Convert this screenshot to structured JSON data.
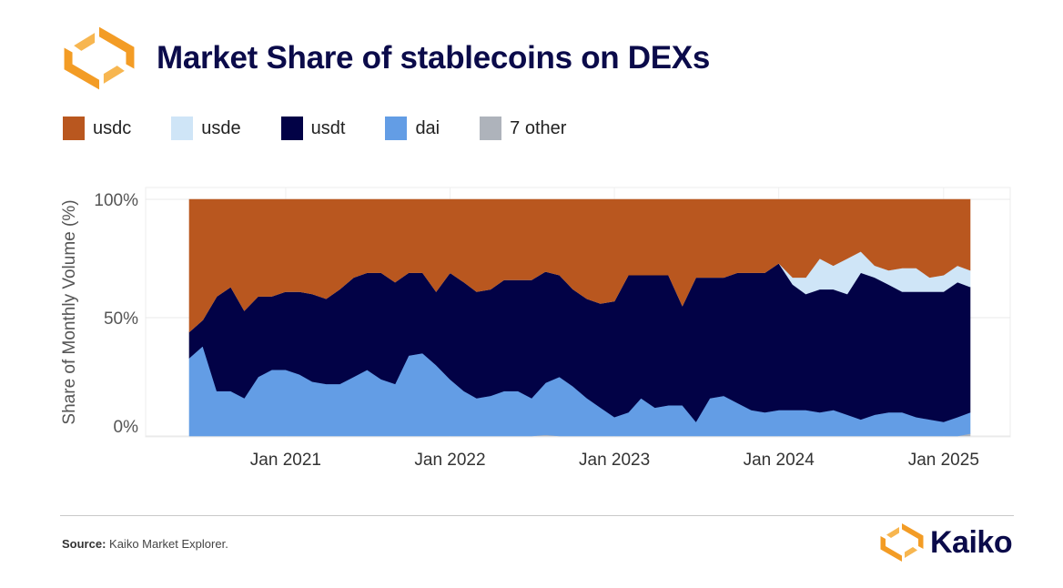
{
  "header": {
    "title": "Market Share of stablecoins on DEXs"
  },
  "footer": {
    "source_label": "Source:",
    "source_text": "Kaiko Market Explorer.",
    "brand": "Kaiko"
  },
  "colors": {
    "usdc": "#b9571f",
    "usde": "#cfe5f7",
    "usdt": "#020246",
    "dai": "#639de5",
    "other": "#aeb3bb",
    "brand_orange": "#f39c25",
    "title": "#0b0b4a"
  },
  "icons": [
    "kaiko-logo-icon"
  ],
  "chart_data": {
    "type": "area",
    "stacked": true,
    "title": "Market Share of stablecoins on DEXs",
    "ylabel": "Share of Monthly Volume (%)",
    "xlabel": "",
    "ylim": [
      0,
      100
    ],
    "yticks": [
      "0%",
      "50%",
      "100%"
    ],
    "xticks": [
      {
        "date": "2021-01-01",
        "label": "Jan 2021"
      },
      {
        "date": "2022-01-01",
        "label": "Jan 2022"
      },
      {
        "date": "2023-01-01",
        "label": "Jan 2023"
      },
      {
        "date": "2024-01-01",
        "label": "Jan 2024"
      },
      {
        "date": "2025-01-01",
        "label": "Jan 2025"
      }
    ],
    "xlim": [
      "2020-06-01",
      "2025-03-01"
    ],
    "grid": true,
    "legend_position": "top",
    "x": [
      "2020-06",
      "2020-07",
      "2020-08",
      "2020-09",
      "2020-10",
      "2020-11",
      "2020-12",
      "2021-01",
      "2021-02",
      "2021-03",
      "2021-04",
      "2021-05",
      "2021-06",
      "2021-07",
      "2021-08",
      "2021-09",
      "2021-10",
      "2021-11",
      "2021-12",
      "2022-01",
      "2022-02",
      "2022-03",
      "2022-04",
      "2022-05",
      "2022-06",
      "2022-07",
      "2022-08",
      "2022-09",
      "2022-10",
      "2022-11",
      "2022-12",
      "2023-01",
      "2023-02",
      "2023-03",
      "2023-04",
      "2023-05",
      "2023-06",
      "2023-07",
      "2023-08",
      "2023-09",
      "2023-10",
      "2023-11",
      "2023-12",
      "2024-01",
      "2024-02",
      "2024-03",
      "2024-04",
      "2024-05",
      "2024-06",
      "2024-07",
      "2024-08",
      "2024-09",
      "2024-10",
      "2024-11",
      "2024-12",
      "2025-01",
      "2025-02",
      "2025-03"
    ],
    "series": [
      {
        "name": "7 other",
        "values": [
          0,
          0,
          0,
          0,
          0,
          0,
          0,
          0,
          0,
          0,
          0,
          0,
          0,
          0,
          0,
          0,
          0,
          0,
          0,
          0,
          0,
          0,
          0,
          0,
          0,
          0,
          0.5,
          0,
          0,
          0,
          0,
          0,
          0,
          0,
          0,
          0,
          0,
          0,
          0,
          0,
          0,
          0,
          0,
          0,
          0,
          0,
          0,
          0,
          0,
          0,
          0,
          0,
          0,
          0,
          0,
          0,
          0,
          1
        ]
      },
      {
        "name": "dai",
        "values": [
          33,
          38,
          19,
          19,
          16,
          25,
          28,
          28,
          26,
          23,
          22,
          22,
          25,
          28,
          24,
          22,
          34,
          35,
          30,
          24,
          19,
          16,
          17,
          19,
          19,
          16,
          22,
          25,
          21,
          16,
          12,
          8,
          10,
          16,
          12,
          13,
          13,
          6,
          16,
          17,
          14,
          11,
          10,
          11,
          11,
          11,
          10,
          11,
          9,
          7,
          9,
          10,
          10,
          8,
          7,
          6,
          8,
          9
        ]
      },
      {
        "name": "usdt",
        "values": [
          11,
          11,
          40,
          44,
          37,
          34,
          31,
          33,
          35,
          37,
          36,
          40,
          42,
          41,
          45,
          43,
          35,
          34,
          31,
          45,
          46,
          45,
          45,
          47,
          47,
          50,
          47,
          43,
          41,
          42,
          44,
          49,
          58,
          52,
          56,
          55,
          42,
          61,
          51,
          50,
          55,
          58,
          59,
          62,
          53,
          49,
          52,
          51,
          51,
          62,
          58,
          54,
          51,
          53,
          54,
          55,
          57,
          53
        ]
      },
      {
        "name": "usde",
        "values": [
          0,
          0,
          0,
          0,
          0,
          0,
          0,
          0,
          0,
          0,
          0,
          0,
          0,
          0,
          0,
          0,
          0,
          0,
          0,
          0,
          0,
          0,
          0,
          0,
          0,
          0,
          0,
          0,
          0,
          0,
          0,
          0,
          0,
          0,
          0,
          0,
          0,
          0,
          0,
          0,
          0,
          0,
          0,
          0,
          3,
          7,
          13,
          10,
          15,
          9,
          5,
          6,
          10,
          10,
          6,
          7,
          7,
          7
        ]
      },
      {
        "name": "usdc",
        "values": [
          56,
          51,
          41,
          37,
          47,
          41,
          41,
          39,
          39,
          40,
          42,
          38,
          33,
          31,
          31,
          35,
          31,
          31,
          39,
          31,
          35,
          39,
          38,
          34,
          34,
          34,
          30.5,
          32,
          38,
          42,
          44,
          43,
          32,
          32,
          32,
          32,
          45,
          33,
          33,
          33,
          31,
          31,
          31,
          27,
          33,
          33,
          25,
          28,
          25,
          22,
          28,
          30,
          29,
          29,
          33,
          32,
          28,
          30
        ]
      }
    ]
  }
}
